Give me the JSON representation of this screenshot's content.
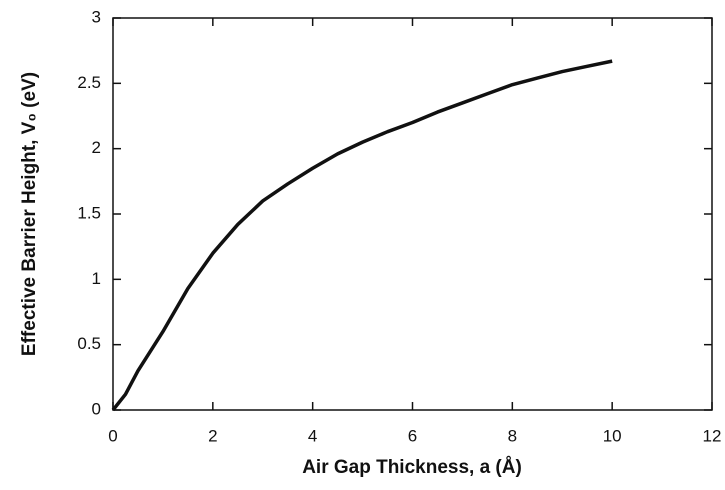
{
  "chart_data": {
    "type": "line",
    "xlabel": "Air Gap Thickness, a (Å)",
    "ylabel": "Effective Barrier Height, V₀ (eV)",
    "x": [
      0,
      0.25,
      0.5,
      1,
      1.5,
      2,
      2.5,
      3,
      3.5,
      4,
      4.5,
      5,
      5.5,
      6,
      6.5,
      7,
      7.5,
      8,
      8.5,
      9,
      9.5,
      10
    ],
    "series": [
      {
        "color": "#111111",
        "values": [
          0,
          0.12,
          0.3,
          0.6,
          0.93,
          1.2,
          1.42,
          1.6,
          1.73,
          1.85,
          1.96,
          2.05,
          2.13,
          2.2,
          2.28,
          2.35,
          2.42,
          2.49,
          2.54,
          2.59,
          2.63,
          2.67
        ]
      }
    ],
    "xlim": [
      0,
      12
    ],
    "xticks": [
      0,
      2,
      4,
      6,
      8,
      10,
      12
    ],
    "ylim": [
      0,
      3
    ],
    "yticks": [
      0,
      0.5,
      1,
      1.5,
      2,
      2.5,
      3
    ]
  }
}
